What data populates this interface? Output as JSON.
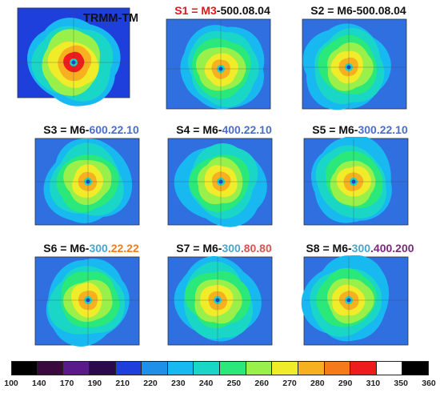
{
  "panels": [
    {
      "id": "tmi",
      "title_parts": [
        {
          "text": "TRMM-TMI",
          "color": "black"
        }
      ]
    },
    {
      "id": "s1",
      "title_parts": [
        {
          "text": "S1 ",
          "color": "red"
        },
        {
          "text": "= M3",
          "color": "red"
        },
        {
          "text": "-500.08.04",
          "color": "black"
        }
      ]
    },
    {
      "id": "s2",
      "title_parts": [
        {
          "text": "S2 = M6-500.08.04",
          "color": "black"
        }
      ]
    },
    {
      "id": "s3",
      "title_parts": [
        {
          "text": "S3 = M6-",
          "color": "black"
        },
        {
          "text": "600",
          "color": "blue"
        },
        {
          "text": ".22.10",
          "color": "blue"
        }
      ]
    },
    {
      "id": "s4",
      "title_parts": [
        {
          "text": "S4 = M6-",
          "color": "black"
        },
        {
          "text": "400",
          "color": "blue"
        },
        {
          "text": ".22.10",
          "color": "blue"
        }
      ]
    },
    {
      "id": "s5",
      "title_parts": [
        {
          "text": "S5 = M6-",
          "color": "black"
        },
        {
          "text": "300",
          "color": "blue"
        },
        {
          "text": ".22.10",
          "color": "blue"
        }
      ]
    },
    {
      "id": "s6",
      "title_parts": [
        {
          "text": "S6 = M6-",
          "color": "black"
        },
        {
          "text": "300",
          "color": "cyan"
        },
        {
          "text": ".22.22",
          "color": "orange"
        }
      ]
    },
    {
      "id": "s7",
      "title_parts": [
        {
          "text": "S7 = M6-",
          "color": "black"
        },
        {
          "text": "300",
          "color": "cyan"
        },
        {
          "text": ".80.80",
          "color": "red2"
        }
      ]
    },
    {
      "id": "s8",
      "title_parts": [
        {
          "text": "S8 = M6-",
          "color": "black"
        },
        {
          "text": "300",
          "color": "cyan"
        },
        {
          "text": ".400.200",
          "color": "purple"
        }
      ]
    }
  ],
  "colorbar": {
    "labels": [
      "100",
      "140",
      "170",
      "190",
      "210",
      "220",
      "230",
      "240",
      "250",
      "260",
      "270",
      "280",
      "290",
      "310",
      "350",
      "360"
    ],
    "colors": [
      "#000000",
      "#3a0a3e",
      "#5a1a8a",
      "#2a0a4a",
      "#1f3fdc",
      "#1f8fe8",
      "#18b8f0",
      "#1ad6c6",
      "#2ae87a",
      "#9af04a",
      "#f0ec2a",
      "#f6b020",
      "#f47a1a",
      "#ee1c1c",
      "#ffffff",
      "#000000"
    ]
  },
  "colors": {
    "black": "#111111",
    "red": "#e2141d",
    "blue": "#4a6fc4",
    "cyan": "#4aa5c8",
    "orange": "#f07c1a",
    "red2": "#d9534f",
    "purple": "#7a2a7a"
  }
}
